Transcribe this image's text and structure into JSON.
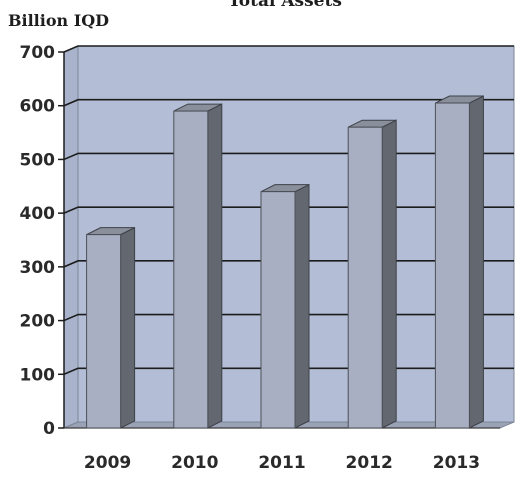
{
  "chart_data": {
    "type": "bar",
    "title": "Total Assets",
    "ylabel": "Billion IQD",
    "xlabel": "",
    "categories": [
      "2009",
      "2010",
      "2011",
      "2012",
      "2013"
    ],
    "values": [
      360,
      590,
      440,
      560,
      605
    ],
    "ylim": [
      0,
      700
    ],
    "yticks": [
      0,
      100,
      200,
      300,
      400,
      500,
      600,
      700
    ],
    "grid": true,
    "colors": {
      "bar_front": "#a9afc2",
      "bar_side": "#63676f",
      "bar_top": "#8a8f9c",
      "wall": "#b3bed6",
      "wall_side": "#a9b4cc",
      "floor": "#9aa3b5",
      "gridline": "#1c1c1c"
    }
  }
}
